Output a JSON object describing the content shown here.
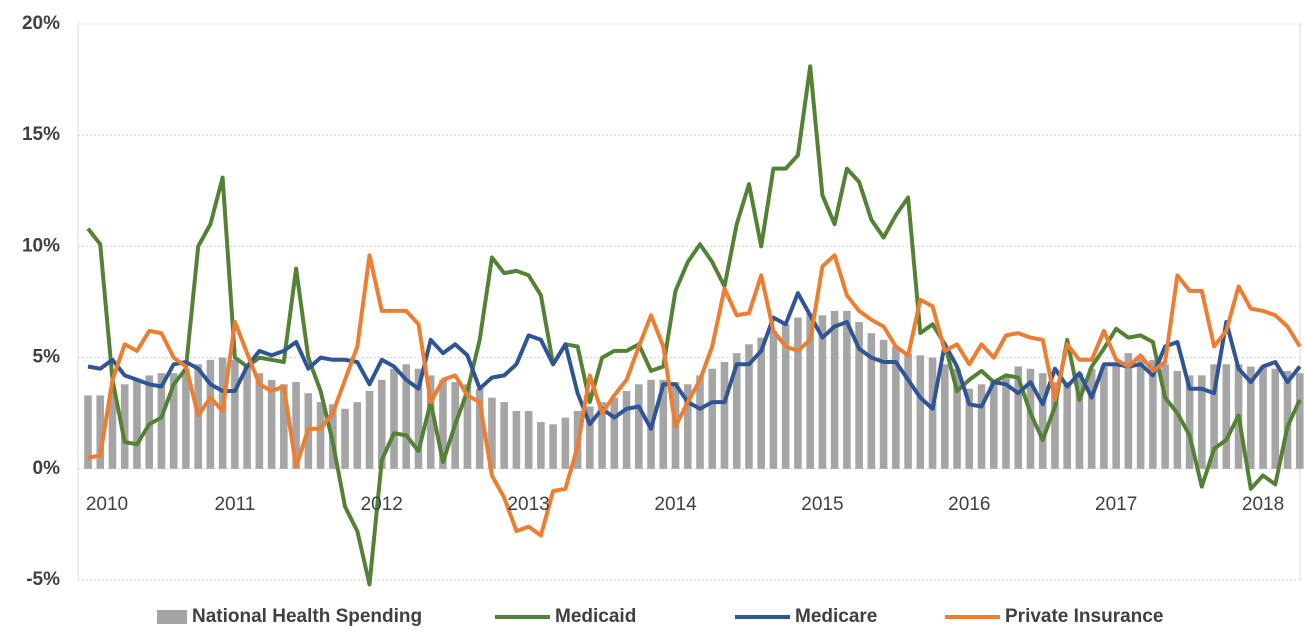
{
  "chart_data": {
    "type": "combo",
    "categories": [
      "2010",
      null,
      null,
      null,
      null,
      null,
      null,
      null,
      null,
      null,
      null,
      null,
      "2011",
      null,
      null,
      null,
      null,
      null,
      null,
      null,
      null,
      null,
      null,
      null,
      "2012",
      null,
      null,
      null,
      null,
      null,
      null,
      null,
      null,
      null,
      null,
      null,
      "2013",
      null,
      null,
      null,
      null,
      null,
      null,
      null,
      null,
      null,
      null,
      null,
      "2014",
      null,
      null,
      null,
      null,
      null,
      null,
      null,
      null,
      null,
      null,
      null,
      "2015",
      null,
      null,
      null,
      null,
      null,
      null,
      null,
      null,
      null,
      null,
      null,
      "2016",
      null,
      null,
      null,
      null,
      null,
      null,
      null,
      null,
      null,
      null,
      null,
      "2017",
      null,
      null,
      null,
      null,
      null,
      null,
      null,
      null,
      null,
      null,
      null,
      "2018",
      null,
      null,
      null
    ],
    "series": [
      {
        "name": "National Health Spending",
        "type": "bar",
        "color": "#a5a5a5",
        "values": [
          3.3,
          3.3,
          3.6,
          3.8,
          4.0,
          4.2,
          4.3,
          4.3,
          4.5,
          4.7,
          4.9,
          5.0,
          4.9,
          4.6,
          4.3,
          4.0,
          3.8,
          3.9,
          3.4,
          3.0,
          2.9,
          2.7,
          3.0,
          3.5,
          4.0,
          4.5,
          4.7,
          4.5,
          4.2,
          4.0,
          3.9,
          3.8,
          3.6,
          3.2,
          3.0,
          2.6,
          2.6,
          2.1,
          2.0,
          2.3,
          2.6,
          2.8,
          3.0,
          3.2,
          3.5,
          3.8,
          4.0,
          4.0,
          3.9,
          3.8,
          4.2,
          4.5,
          4.8,
          5.2,
          5.6,
          5.9,
          6.2,
          6.5,
          6.8,
          7.0,
          6.9,
          7.1,
          7.1,
          6.6,
          6.1,
          5.8,
          5.5,
          5.2,
          5.1,
          5.0,
          4.7,
          4.5,
          3.6,
          3.8,
          4.0,
          4.2,
          4.6,
          4.5,
          4.3,
          3.9,
          3.9,
          4.3,
          4.5,
          4.6,
          4.7,
          5.2,
          5.1,
          4.9,
          4.7,
          4.4,
          4.2,
          4.2,
          4.7,
          4.7,
          4.7,
          4.6,
          4.6,
          4.5,
          4.4,
          4.3
        ]
      },
      {
        "name": "Medicaid",
        "type": "line",
        "color": "#548235",
        "values": [
          10.8,
          10.1,
          4.0,
          1.2,
          1.1,
          2.0,
          2.3,
          3.8,
          4.5,
          10.0,
          11.0,
          13.1,
          5.0,
          4.6,
          5.0,
          4.9,
          4.8,
          9.0,
          5.0,
          3.5,
          1.2,
          -1.7,
          -2.8,
          -5.2,
          0.4,
          1.6,
          1.5,
          0.8,
          3.0,
          0.3,
          2.0,
          3.5,
          5.8,
          9.5,
          8.8,
          8.9,
          8.7,
          7.8,
          4.7,
          5.6,
          5.5,
          3.0,
          5.0,
          5.3,
          5.3,
          5.6,
          4.4,
          4.6,
          8.0,
          9.3,
          10.1,
          9.3,
          8.2,
          11.0,
          12.8,
          10.0,
          13.5,
          13.5,
          14.1,
          18.1,
          12.3,
          11.0,
          13.5,
          12.9,
          11.2,
          10.4,
          11.4,
          12.2,
          6.1,
          6.5,
          5.6,
          3.5,
          4.0,
          4.4,
          3.9,
          4.2,
          4.1,
          2.5,
          1.3,
          2.8,
          5.8,
          3.1,
          4.6,
          5.4,
          6.3,
          5.9,
          6.0,
          5.7,
          3.2,
          2.5,
          1.5,
          -0.8,
          0.9,
          1.3,
          2.4,
          -0.9,
          -0.3,
          -0.7,
          1.9,
          3.1
        ]
      },
      {
        "name": "Medicare",
        "type": "line",
        "color": "#2f5597",
        "values": [
          4.6,
          4.5,
          4.9,
          4.2,
          4.0,
          3.8,
          3.7,
          4.7,
          4.8,
          4.5,
          3.8,
          3.5,
          3.5,
          4.6,
          5.3,
          5.1,
          5.3,
          5.7,
          4.5,
          5.0,
          4.9,
          4.9,
          4.8,
          3.8,
          4.9,
          4.6,
          4.0,
          3.6,
          5.8,
          5.2,
          5.6,
          5.1,
          3.6,
          4.1,
          4.2,
          4.7,
          6.0,
          5.8,
          4.7,
          5.6,
          3.4,
          2.0,
          2.7,
          2.3,
          2.7,
          2.8,
          1.8,
          3.8,
          3.8,
          3.0,
          2.7,
          3.0,
          3.0,
          4.7,
          4.7,
          5.3,
          6.8,
          6.5,
          7.9,
          6.9,
          5.9,
          6.4,
          6.6,
          5.4,
          5.0,
          4.8,
          4.8,
          4.0,
          3.2,
          2.7,
          5.6,
          4.6,
          2.9,
          2.8,
          3.9,
          3.8,
          3.4,
          3.9,
          2.9,
          4.5,
          3.7,
          4.3,
          3.2,
          4.7,
          4.7,
          4.6,
          4.7,
          4.2,
          5.5,
          5.7,
          3.6,
          3.6,
          3.4,
          6.6,
          4.5,
          3.9,
          4.6,
          4.8,
          3.9,
          4.6
        ]
      },
      {
        "name": "Private Insurance",
        "type": "line",
        "color": "#ed7d31",
        "values": [
          0.5,
          0.6,
          4.0,
          5.6,
          5.3,
          6.2,
          6.1,
          5.0,
          4.6,
          2.4,
          3.2,
          2.6,
          6.6,
          5.2,
          3.8,
          3.5,
          3.7,
          0.1,
          1.8,
          1.8,
          2.5,
          4.0,
          5.5,
          9.6,
          7.1,
          7.1,
          7.1,
          6.5,
          3.0,
          4.0,
          4.2,
          3.3,
          3.0,
          -0.3,
          -1.3,
          -2.8,
          -2.6,
          -3.0,
          -1.0,
          -0.9,
          1.0,
          4.2,
          2.5,
          3.3,
          4.0,
          5.5,
          6.9,
          5.5,
          1.9,
          3.0,
          4.0,
          5.5,
          8.1,
          6.9,
          7.0,
          8.7,
          6.2,
          5.5,
          5.3,
          5.8,
          9.1,
          9.6,
          7.8,
          7.1,
          6.7,
          6.4,
          5.5,
          5.1,
          7.6,
          7.3,
          5.3,
          5.6,
          4.7,
          5.6,
          5.0,
          6.0,
          6.1,
          5.9,
          5.8,
          3.1,
          5.6,
          4.9,
          4.9,
          6.2,
          4.9,
          4.6,
          5.1,
          4.4,
          4.8,
          8.7,
          8.0,
          8.0,
          5.5,
          6.2,
          8.2,
          7.2,
          7.1,
          6.9,
          6.4,
          5.5
        ]
      }
    ],
    "ylim": [
      -5,
      20
    ],
    "yticks": [
      {
        "value": -5,
        "label": "-5%"
      },
      {
        "value": 0,
        "label": "0%"
      },
      {
        "value": 5,
        "label": "5%"
      },
      {
        "value": 10,
        "label": "10%"
      },
      {
        "value": 15,
        "label": "15%"
      },
      {
        "value": 20,
        "label": "20%"
      }
    ],
    "grid": true,
    "legend": "bottom"
  }
}
